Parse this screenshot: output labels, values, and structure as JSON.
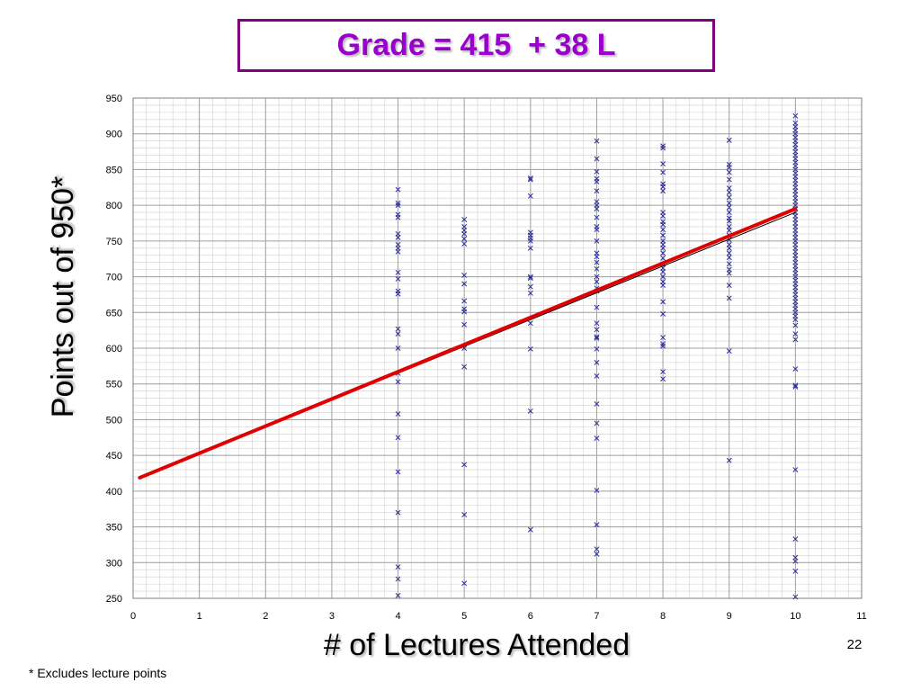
{
  "slide": {
    "title": "Grade = 415  + 38 L",
    "page_number": "22",
    "footnote": "* Excludes lecture points"
  },
  "colors": {
    "title_text": "#9900cc",
    "title_border": "#800080",
    "markers": "#2b2b9b",
    "regression": "#e00000",
    "trend": "#000000",
    "grid": "#a0a0a0"
  },
  "chart_data": {
    "type": "scatter",
    "title": "",
    "xlabel": "# of Lectures Attended",
    "ylabel": "Points out of 950*",
    "xlim": [
      0,
      11
    ],
    "ylim": [
      250,
      950
    ],
    "x_ticks": [
      0,
      1,
      2,
      3,
      4,
      5,
      6,
      7,
      8,
      9,
      10,
      11
    ],
    "y_ticks": [
      250,
      300,
      350,
      400,
      450,
      500,
      550,
      600,
      650,
      700,
      750,
      800,
      850,
      900,
      950
    ],
    "grid": true,
    "legend": "none",
    "marker": "x",
    "points": [
      {
        "x": 4,
        "ys": [
          822,
          803,
          800,
          787,
          783,
          760,
          755,
          745,
          740,
          735,
          706,
          697,
          680,
          676,
          627,
          620,
          600,
          565,
          553,
          508,
          475,
          427,
          370,
          294,
          277,
          254
        ]
      },
      {
        "x": 5,
        "ys": [
          780,
          770,
          765,
          760,
          753,
          746,
          702,
          690,
          666,
          655,
          651,
          633,
          600,
          574,
          437,
          367,
          271
        ]
      },
      {
        "x": 6,
        "ys": [
          838,
          836,
          813,
          762,
          758,
          754,
          750,
          740,
          700,
          698,
          686,
          677,
          635,
          599,
          512,
          346
        ]
      },
      {
        "x": 7,
        "ys": [
          890,
          865,
          847,
          837,
          833,
          820,
          805,
          800,
          795,
          783,
          770,
          766,
          750,
          733,
          728,
          720,
          711,
          700,
          693,
          684,
          680,
          657,
          635,
          626,
          616,
          614,
          599,
          580,
          561,
          522,
          495,
          474,
          401,
          353,
          319,
          312
        ]
      },
      {
        "x": 8,
        "ys": [
          883,
          880,
          858,
          846,
          830,
          826,
          820,
          790,
          785,
          777,
          773,
          766,
          758,
          750,
          745,
          740,
          733,
          726,
          718,
          712,
          707,
          700,
          693,
          688,
          665,
          648,
          615,
          606,
          603,
          567,
          557
        ]
      },
      {
        "x": 9,
        "ys": [
          891,
          857,
          853,
          846,
          836,
          824,
          818,
          811,
          803,
          797,
          790,
          782,
          778,
          770,
          765,
          758,
          752,
          745,
          740,
          733,
          727,
          718,
          710,
          705,
          688,
          670,
          596,
          443
        ]
      },
      {
        "x": 10,
        "ys": [
          925,
          915,
          910,
          905,
          900,
          895,
          890,
          885,
          880,
          875,
          870,
          865,
          860,
          855,
          850,
          845,
          840,
          835,
          830,
          825,
          820,
          815,
          810,
          805,
          800,
          795,
          790,
          785,
          780,
          775,
          770,
          765,
          760,
          755,
          750,
          745,
          740,
          735,
          730,
          725,
          720,
          715,
          710,
          705,
          700,
          695,
          690,
          685,
          680,
          675,
          670,
          665,
          660,
          655,
          650,
          645,
          640,
          632,
          620,
          612,
          571,
          548,
          546,
          430,
          333,
          307,
          302,
          288,
          252
        ]
      }
    ],
    "regression_line": {
      "label": "Grade = 415  + 38 L",
      "intercept": 415,
      "slope": 38,
      "x_range": [
        0.1,
        10
      ]
    },
    "trend_line": {
      "x_range": [
        4,
        10
      ],
      "y_range": [
        565,
        790
      ]
    }
  }
}
